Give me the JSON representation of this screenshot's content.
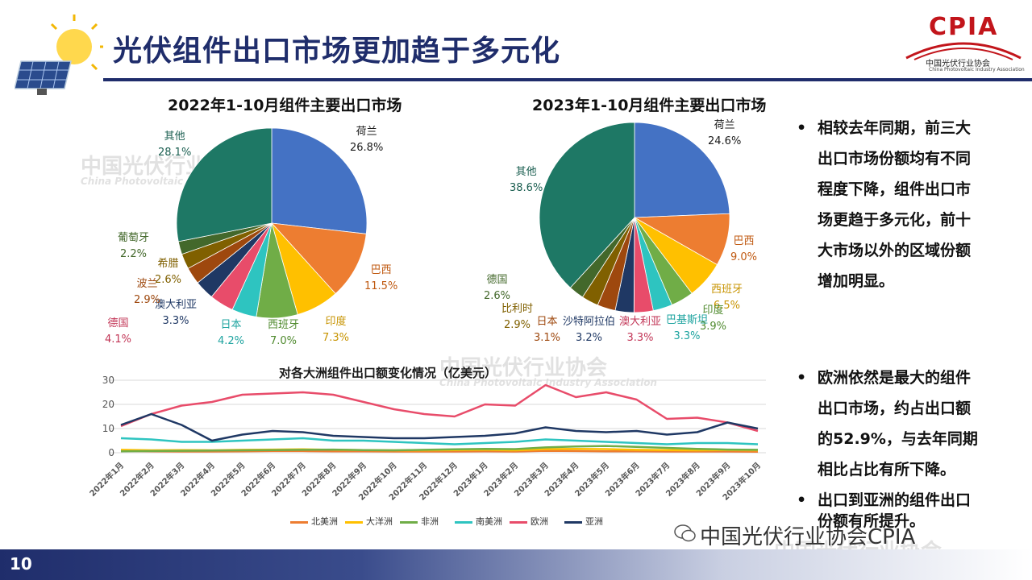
{
  "page": {
    "title": "光伏组件出口市场更加趋于多元化",
    "page_number": "10",
    "logo_text": "CPIA",
    "logo_cn": "中国光伏行业协会",
    "logo_en": "China Photovoltaic Industry Association",
    "wechat": "中国光伏行业协会CPIA",
    "watermark_cn": "中国光伏行业协会",
    "watermark_en": "China Photovoltaic Industry Association"
  },
  "colors": {
    "navy": "#1f2d6b",
    "brand_red": "#c2151b"
  },
  "bullets": [
    {
      "lines": [
        "相较去年同期，前三大",
        "出口市场份额均有不同",
        "程度下降，组件出口市",
        "场更趋于多元化，前十",
        "大市场以外的区域份额",
        "增加明显。"
      ]
    },
    {
      "lines": [
        "欧洲依然是最大的组件",
        "出口市场，约占出口额",
        "的52.9%，与去年同期",
        "相比占比有所下降。"
      ]
    },
    {
      "lines": [
        "出口到亚洲的组件出口",
        "份额有所提升。"
      ]
    }
  ],
  "chart_data": [
    {
      "type": "pie",
      "title": "2022年1-10月组件主要出口市场",
      "slices": [
        {
          "label": "荷兰",
          "value": 26.8,
          "pct": "26.8%",
          "color": "#4472c4"
        },
        {
          "label": "巴西",
          "value": 11.5,
          "pct": "11.5%",
          "color": "#ed7d31"
        },
        {
          "label": "印度",
          "value": 7.3,
          "pct": "7.3%",
          "color": "#ffc000"
        },
        {
          "label": "西班牙",
          "value": 7.0,
          "pct": "7.0%",
          "color": "#70ad47"
        },
        {
          "label": "日本",
          "value": 4.2,
          "pct": "4.2%",
          "color": "#2ec4c0"
        },
        {
          "label": "德国",
          "value": 4.1,
          "pct": "4.1%",
          "color": "#e84c6a"
        },
        {
          "label": "澳大利亚",
          "value": 3.3,
          "pct": "3.3%",
          "color": "#1f3864"
        },
        {
          "label": "波兰",
          "value": 2.9,
          "pct": "2.9%",
          "color": "#9e480e"
        },
        {
          "label": "希腊",
          "value": 2.6,
          "pct": "2.6%",
          "color": "#806000"
        },
        {
          "label": "葡萄牙",
          "value": 2.2,
          "pct": "2.2%",
          "color": "#43682b"
        },
        {
          "label": "其他",
          "value": 28.1,
          "pct": "28.1%",
          "color": "#1e7865"
        }
      ]
    },
    {
      "type": "pie",
      "title": "2023年1-10月组件主要出口市场",
      "slices": [
        {
          "label": "荷兰",
          "value": 24.6,
          "pct": "24.6%",
          "color": "#4472c4"
        },
        {
          "label": "巴西",
          "value": 9.0,
          "pct": "9.0%",
          "color": "#ed7d31"
        },
        {
          "label": "西班牙",
          "value": 6.5,
          "pct": "6.5%",
          "color": "#ffc000"
        },
        {
          "label": "印度",
          "value": 3.9,
          "pct": "3.9%",
          "color": "#70ad47"
        },
        {
          "label": "巴基斯坦",
          "value": 3.3,
          "pct": "3.3%",
          "color": "#2ec4c0"
        },
        {
          "label": "澳大利亚",
          "value": 3.3,
          "pct": "3.3%",
          "color": "#e84c6a"
        },
        {
          "label": "沙特阿拉伯",
          "value": 3.2,
          "pct": "3.2%",
          "color": "#1f3864"
        },
        {
          "label": "日本",
          "value": 3.1,
          "pct": "3.1%",
          "color": "#9e480e"
        },
        {
          "label": "比利时",
          "value": 2.9,
          "pct": "2.9%",
          "color": "#806000"
        },
        {
          "label": "德国",
          "value": 2.6,
          "pct": "2.6%",
          "color": "#43682b"
        },
        {
          "label": "其他",
          "value": 38.6,
          "pct": "38.6%",
          "color": "#1e7865"
        }
      ]
    },
    {
      "type": "line",
      "title": "对各大洲组件出口额变化情况（亿美元）",
      "ylim": [
        0,
        30
      ],
      "yticks": [
        0,
        10,
        20,
        30
      ],
      "categories": [
        "2022年1月",
        "2022年2月",
        "2022年3月",
        "2022年4月",
        "2022年5月",
        "2022年6月",
        "2022年7月",
        "2022年8月",
        "2022年9月",
        "2022年10月",
        "2022年11月",
        "2022年12月",
        "2023年1月",
        "2023年2月",
        "2023年3月",
        "2023年4月",
        "2023年5月",
        "2023年6月",
        "2023年7月",
        "2023年8月",
        "2023年9月",
        "2023年10月"
      ],
      "series": [
        {
          "name": "北美洲",
          "color": "#ed7d31",
          "values": [
            0.8,
            0.6,
            0.5,
            0.5,
            0.6,
            0.7,
            0.7,
            0.6,
            0.6,
            0.5,
            0.5,
            0.5,
            0.6,
            0.5,
            0.8,
            0.7,
            0.6,
            0.6,
            0.5,
            0.5,
            0.5,
            0.4
          ]
        },
        {
          "name": "大洋洲",
          "color": "#ffc000",
          "values": [
            1.2,
            1.0,
            1.1,
            1.0,
            1.2,
            1.3,
            1.4,
            1.2,
            1.1,
            1.0,
            1.0,
            1.1,
            1.2,
            1.0,
            1.5,
            1.6,
            1.5,
            1.2,
            1.1,
            1.0,
            1.1,
            1.0
          ]
        },
        {
          "name": "非洲",
          "color": "#70ad47",
          "values": [
            0.6,
            0.7,
            0.8,
            0.9,
            1.0,
            1.1,
            1.2,
            1.3,
            1.1,
            1.0,
            1.2,
            1.4,
            1.6,
            1.5,
            2.2,
            2.6,
            2.8,
            2.4,
            2.0,
            1.6,
            1.3,
            1.2
          ]
        },
        {
          "name": "南美洲",
          "color": "#2ec4c0",
          "values": [
            6,
            5.5,
            4.5,
            4.5,
            5,
            5.5,
            6,
            5,
            5,
            4.5,
            4,
            3.5,
            4,
            4.5,
            5.5,
            5,
            4.5,
            4,
            3.5,
            4,
            4,
            3.5
          ]
        },
        {
          "name": "欧洲",
          "color": "#e84c6a",
          "values": [
            11,
            16,
            19.5,
            21,
            24,
            24.5,
            25,
            24,
            21,
            18,
            16,
            15,
            20,
            19.5,
            28,
            23,
            25,
            22,
            14,
            14.5,
            12.5,
            9
          ]
        },
        {
          "name": "亚洲",
          "color": "#1f3864",
          "values": [
            11.5,
            16,
            11.5,
            5,
            7.5,
            9,
            8.5,
            7,
            6.5,
            6,
            6,
            6.5,
            7,
            8,
            10.5,
            9,
            8.5,
            9,
            7.5,
            8.5,
            12.5,
            10
          ]
        }
      ]
    }
  ]
}
